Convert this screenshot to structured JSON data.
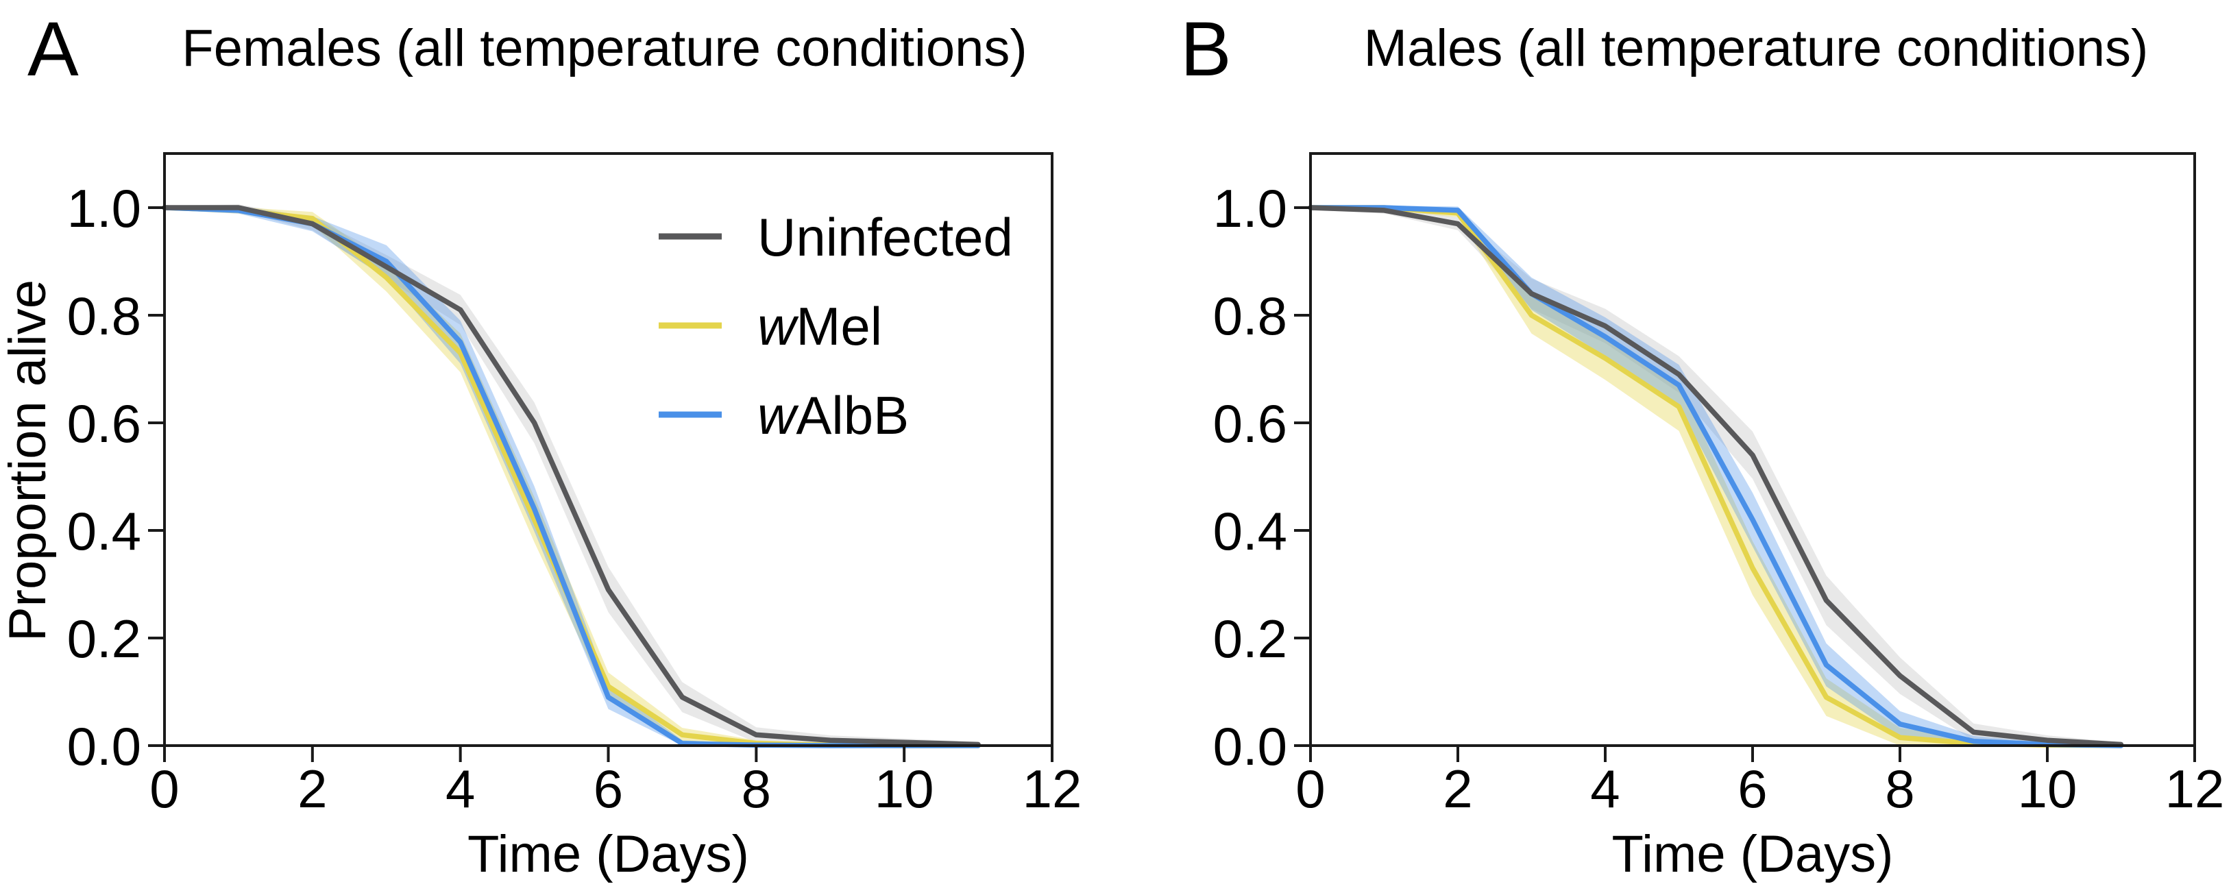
{
  "figure": {
    "background": "#ffffff",
    "colors": {
      "uninfected": "#58585a",
      "wmel": "#e4d44c",
      "walbb": "#4a90e8",
      "uninfected_band": "rgba(110,110,112,0.16)",
      "wmel_band": "rgba(228,212,76,0.38)",
      "walbb_band": "rgba(74,144,232,0.34)",
      "frame": "#1a1a1a",
      "text": "#000000"
    },
    "panels": [
      {
        "letter": "A",
        "title": "Females (all temperature conditions)"
      },
      {
        "letter": "B",
        "title": "Males (all temperature conditions)"
      }
    ],
    "legend": {
      "items": [
        {
          "italic_prefix": "",
          "label": "Uninfected",
          "series_index": 0
        },
        {
          "italic_prefix": "w",
          "label": "Mel",
          "series_index": 1
        },
        {
          "italic_prefix": "w",
          "label": "AlbB",
          "series_index": 2
        }
      ]
    }
  },
  "chart_data": [
    {
      "type": "line",
      "panel_label": "A",
      "title": "Females (all temperature conditions)",
      "xlabel": "Time (Days)",
      "ylabel": "Proportion alive",
      "xlim": [
        0,
        12
      ],
      "ylim": [
        0.0,
        1.0
      ],
      "x_ticks": [
        0,
        2,
        4,
        6,
        8,
        10,
        12
      ],
      "y_ticks": [
        "1.0",
        "0.8",
        "0.6",
        "0.4",
        "0.2",
        "0.0"
      ],
      "grid": false,
      "legend_position": "upper-right",
      "x": [
        0,
        1,
        2,
        3,
        4,
        5,
        6,
        7,
        8,
        9,
        10,
        11
      ],
      "series": [
        {
          "name": "Uninfected",
          "color_key": "uninfected",
          "values": [
            1.0,
            1.0,
            0.97,
            0.89,
            0.81,
            0.6,
            0.29,
            0.09,
            0.02,
            0.01,
            0.006,
            0.002
          ],
          "ci_half": [
            0.004,
            0.006,
            0.012,
            0.022,
            0.028,
            0.038,
            0.042,
            0.028,
            0.014,
            0.009,
            0.007,
            0.005
          ]
        },
        {
          "name": "wMel",
          "color_key": "wmel",
          "values": [
            1.0,
            0.995,
            0.98,
            0.87,
            0.73,
            0.42,
            0.11,
            0.02,
            0.004,
            0.001,
            0,
            0
          ],
          "ci_half": [
            0.004,
            0.006,
            0.012,
            0.026,
            0.036,
            0.042,
            0.026,
            0.013,
            0.006,
            0.003,
            0,
            0
          ]
        },
        {
          "name": "wAlbB",
          "color_key": "walbb",
          "values": [
            1.0,
            0.995,
            0.97,
            0.9,
            0.75,
            0.44,
            0.09,
            0.004,
            0.001,
            0,
            0,
            0
          ],
          "ci_half": [
            0.004,
            0.006,
            0.014,
            0.03,
            0.04,
            0.042,
            0.022,
            0.006,
            0.002,
            0,
            0,
            0
          ]
        }
      ]
    },
    {
      "type": "line",
      "panel_label": "B",
      "title": "Males (all temperature conditions)",
      "xlabel": "Time (Days)",
      "ylabel": null,
      "xlim": [
        0,
        12
      ],
      "ylim": [
        0.0,
        1.0
      ],
      "x_ticks": [
        0,
        2,
        4,
        6,
        8,
        10,
        12
      ],
      "y_ticks": [
        "1.0",
        "0.8",
        "0.6",
        "0.4",
        "0.2",
        "0.0"
      ],
      "grid": false,
      "legend_position": null,
      "x": [
        0,
        1,
        2,
        3,
        4,
        5,
        6,
        7,
        8,
        9,
        10,
        11
      ],
      "series": [
        {
          "name": "Uninfected",
          "color_key": "uninfected",
          "values": [
            1.0,
            0.995,
            0.97,
            0.84,
            0.78,
            0.69,
            0.54,
            0.27,
            0.13,
            0.025,
            0.01,
            0.002
          ],
          "ci_half": [
            0.004,
            0.006,
            0.012,
            0.028,
            0.032,
            0.034,
            0.044,
            0.046,
            0.034,
            0.016,
            0.009,
            0.004
          ]
        },
        {
          "name": "wMel",
          "color_key": "wmel",
          "values": [
            1.0,
            1.0,
            0.99,
            0.8,
            0.72,
            0.63,
            0.33,
            0.09,
            0.015,
            0.004,
            0.001,
            0
          ],
          "ci_half": [
            0.003,
            0.004,
            0.008,
            0.034,
            0.04,
            0.045,
            0.05,
            0.035,
            0.018,
            0.008,
            0.003,
            0
          ]
        },
        {
          "name": "wAlbB",
          "color_key": "walbb",
          "values": [
            1.0,
            1.0,
            0.995,
            0.84,
            0.76,
            0.67,
            0.42,
            0.15,
            0.04,
            0.008,
            0.002,
            0
          ],
          "ci_half": [
            0.003,
            0.004,
            0.007,
            0.03,
            0.036,
            0.038,
            0.05,
            0.04,
            0.024,
            0.01,
            0.004,
            0
          ]
        }
      ]
    }
  ]
}
